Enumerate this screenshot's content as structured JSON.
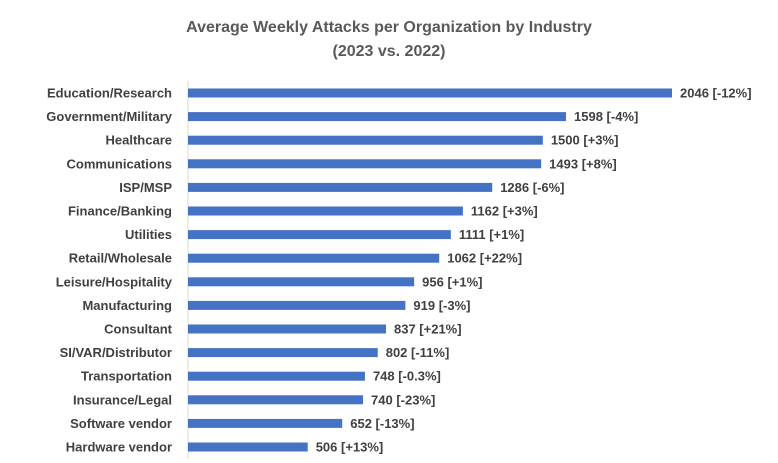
{
  "chart_data": {
    "type": "bar",
    "orientation": "horizontal",
    "title": "Average Weekly Attacks per Organization by Industry",
    "subtitle": "(2023 vs. 2022)",
    "xlabel": "",
    "ylabel": "",
    "xlim": [
      0,
      2100
    ],
    "grid": false,
    "legend": "none",
    "bar_color": "#4472C4",
    "categories": [
      "Education/Research",
      "Government/Military",
      "Healthcare",
      "Communications",
      "ISP/MSP",
      "Finance/Banking",
      "Utilities",
      "Retail/Wholesale",
      "Leisure/Hospitality",
      "Manufacturing",
      "Consultant",
      "SI/VAR/Distributor",
      "Transportation",
      "Insurance/Legal",
      "Software vendor",
      "Hardware vendor"
    ],
    "values": [
      2046,
      1598,
      1500,
      1493,
      1286,
      1162,
      1111,
      1062,
      956,
      919,
      837,
      802,
      748,
      740,
      652,
      506
    ],
    "data_labels": [
      "2046 [-12%]",
      "1598 [-4%]",
      "1500 [+3%]",
      "1493 [+8%]",
      "1286 [-6%]",
      "1162 [+3%]",
      "1111 [+1%]",
      "1062 [+22%]",
      "956 [+1%]",
      "919 [-3%]",
      "837 [+21%]",
      "802 [-11%]",
      "748 [-0.3%]",
      "740 [-23%]",
      "652 [-13%]",
      "506 [+13%]"
    ]
  }
}
